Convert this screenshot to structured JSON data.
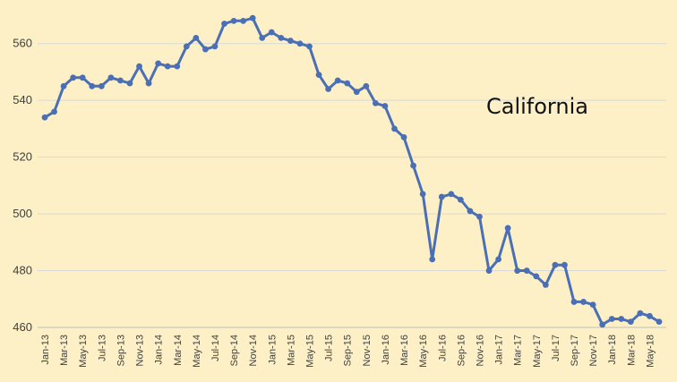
{
  "chart_data": {
    "type": "line",
    "title": "California",
    "xlabel": "",
    "ylabel": "",
    "ylim": [
      460,
      570
    ],
    "yticks": [
      460,
      480,
      500,
      520,
      540,
      560
    ],
    "grid": true,
    "legend": "none",
    "colors": {
      "background": "#fdf0c6",
      "line": "#4a6fb5",
      "grid": "#d9d9d9"
    },
    "x": [
      "Jan-13",
      "Feb-13",
      "Mar-13",
      "Apr-13",
      "May-13",
      "Jun-13",
      "Jul-13",
      "Aug-13",
      "Sep-13",
      "Oct-13",
      "Nov-13",
      "Dec-13",
      "Jan-14",
      "Feb-14",
      "Mar-14",
      "Apr-14",
      "May-14",
      "Jun-14",
      "Jul-14",
      "Aug-14",
      "Sep-14",
      "Oct-14",
      "Nov-14",
      "Dec-14",
      "Jan-15",
      "Feb-15",
      "Mar-15",
      "Apr-15",
      "May-15",
      "Jun-15",
      "Jul-15",
      "Aug-15",
      "Sep-15",
      "Oct-15",
      "Nov-15",
      "Dec-15",
      "Jan-16",
      "Feb-16",
      "Mar-16",
      "Apr-16",
      "May-16",
      "Jun-16",
      "Jul-16",
      "Aug-16",
      "Sep-16",
      "Oct-16",
      "Nov-16",
      "Dec-16",
      "Jan-17",
      "Feb-17",
      "Mar-17",
      "Apr-17",
      "May-17",
      "Jun-17",
      "Jul-17",
      "Aug-17",
      "Sep-17",
      "Oct-17",
      "Nov-17",
      "Dec-17",
      "Jan-18",
      "Feb-18",
      "Mar-18",
      "Apr-18",
      "May-18",
      "Jun-18"
    ],
    "tick_labels": [
      "Jan-13",
      "Mar-13",
      "May-13",
      "Jul-13",
      "Sep-13",
      "Nov-13",
      "Jan-14",
      "Mar-14",
      "May-14",
      "Jul-14",
      "Sep-14",
      "Nov-14",
      "Jan-15",
      "Mar-15",
      "May-15",
      "Jul-15",
      "Sep-15",
      "Nov-15",
      "Jan-16",
      "Mar-16",
      "May-16",
      "Jul-16",
      "Sep-16",
      "Nov-16",
      "Jan-17",
      "Mar-17",
      "May-17",
      "Jul-17",
      "Sep-17",
      "Nov-17",
      "Jan-18",
      "Mar-18",
      "May-18"
    ],
    "series": [
      {
        "values": [
          534,
          536,
          545,
          548,
          548,
          545,
          545,
          548,
          547,
          546,
          552,
          546,
          553,
          552,
          552,
          559,
          562,
          558,
          559,
          567,
          568,
          568,
          569,
          562,
          564,
          562,
          561,
          560,
          559,
          549,
          544,
          547,
          546,
          543,
          545,
          539,
          538,
          530,
          527,
          517,
          507,
          484,
          506,
          507,
          505,
          501,
          499,
          480,
          484,
          495,
          480,
          480,
          478,
          475,
          482,
          482,
          469,
          469,
          468,
          461,
          463,
          463,
          462,
          465,
          464,
          462
        ]
      }
    ]
  }
}
